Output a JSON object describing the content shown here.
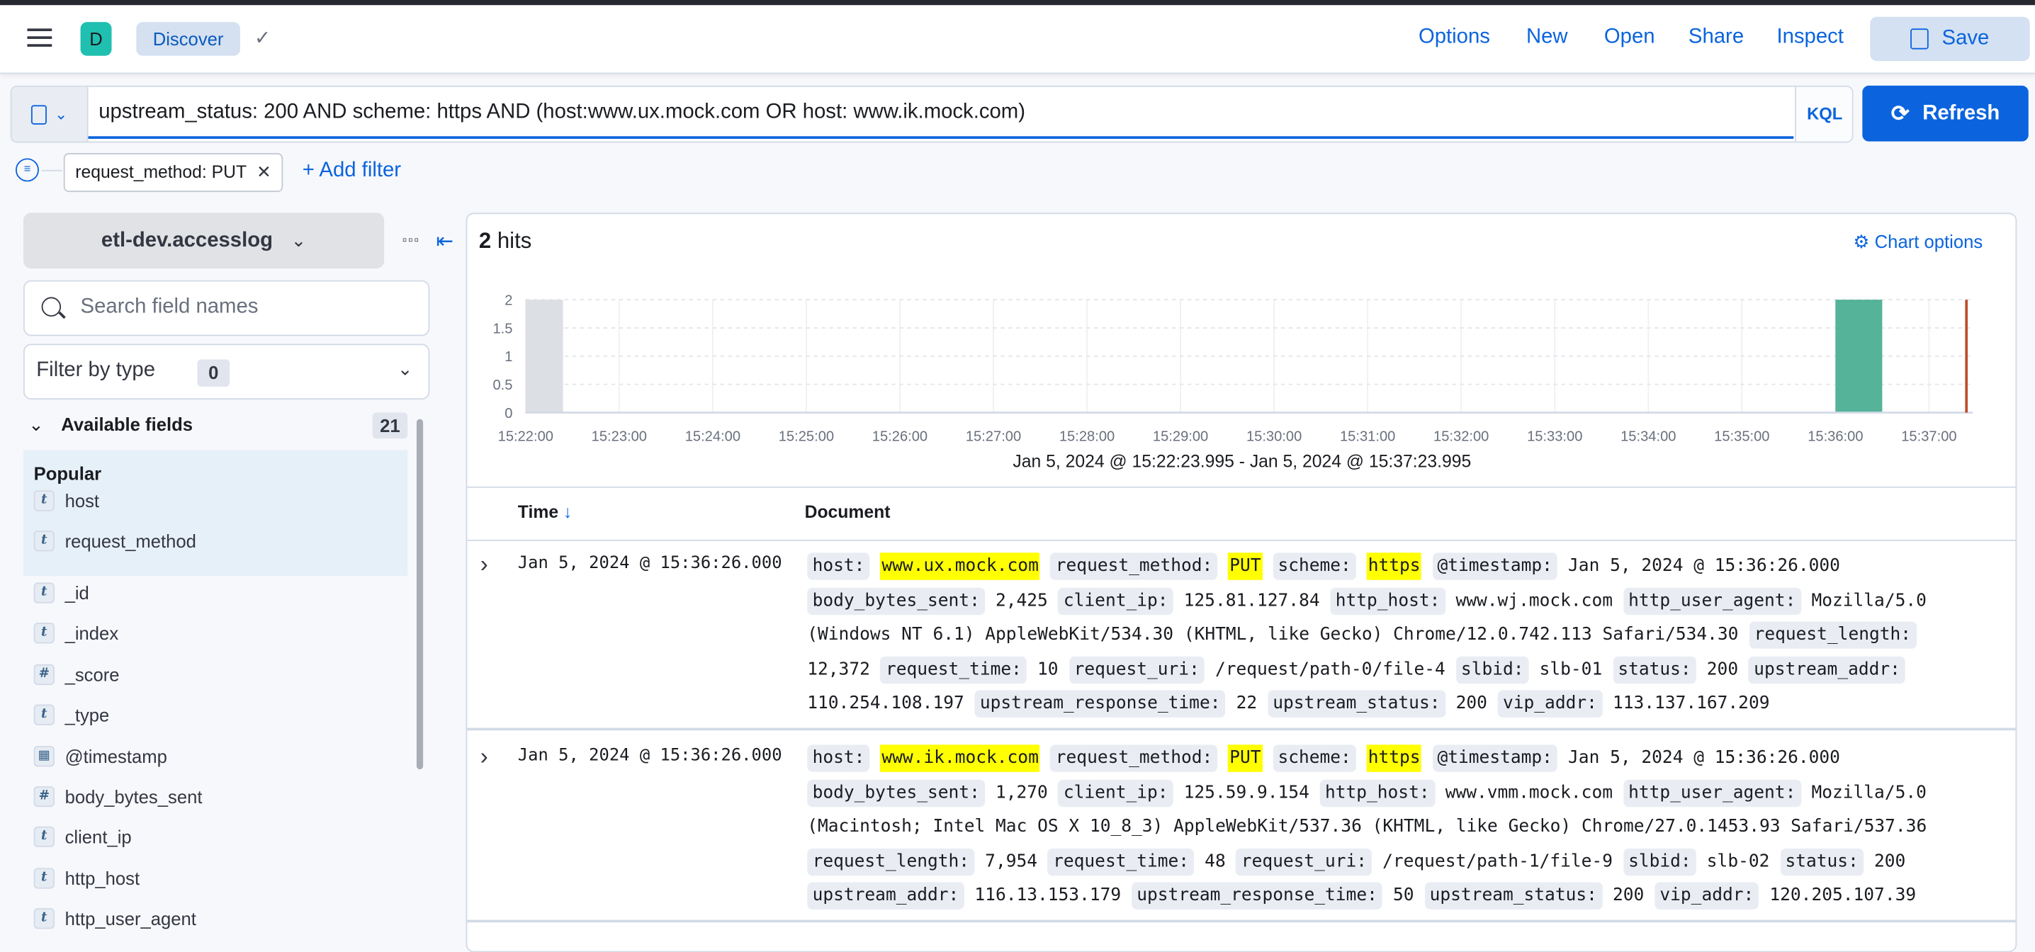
{
  "header": {
    "app_badge": "D",
    "breadcrumb": "Discover",
    "nav": [
      "Options",
      "New",
      "Open",
      "Share",
      "Inspect"
    ],
    "save_label": "Save"
  },
  "query": {
    "value": "upstream_status: 200 AND scheme: https AND (host:www.ux.mock.com OR host: www.ik.mock.com)",
    "language": "KQL",
    "refresh_label": "Refresh"
  },
  "filters": {
    "pills": [
      "request_method: PUT"
    ],
    "add_label": "+ Add filter"
  },
  "sidebar": {
    "index_pattern": "etl-dev.accesslog",
    "search_placeholder": "Search field names",
    "filter_by_type_label": "Filter by type",
    "filter_by_type_count": "0",
    "available_label": "Available fields",
    "available_count": "21",
    "popular_label": "Popular",
    "popular_fields": [
      {
        "type": "t",
        "name": "host"
      },
      {
        "type": "t",
        "name": "request_method"
      }
    ],
    "fields": [
      {
        "type": "t",
        "name": "_id"
      },
      {
        "type": "t",
        "name": "_index"
      },
      {
        "type": "#",
        "name": "_score"
      },
      {
        "type": "t",
        "name": "_type"
      },
      {
        "type": "date",
        "name": "@timestamp"
      },
      {
        "type": "#",
        "name": "body_bytes_sent"
      },
      {
        "type": "t",
        "name": "client_ip"
      },
      {
        "type": "t",
        "name": "http_host"
      },
      {
        "type": "t",
        "name": "http_user_agent"
      }
    ]
  },
  "main": {
    "hits_count": "2",
    "hits_label": " hits",
    "chart_options_label": "Chart options",
    "time_range": "Jan 5, 2024 @ 15:22:23.995 - Jan 5, 2024 @ 15:37:23.995",
    "columns": [
      "Time",
      "Document"
    ],
    "rows": [
      {
        "time": "Jan 5, 2024 @ 15:36:26.000",
        "fields": [
          {
            "k": "host:",
            "v": "www.ux.mock.com",
            "hl": true
          },
          {
            "k": "request_method:",
            "v": "PUT",
            "hl": true
          },
          {
            "k": "scheme:",
            "v": "https",
            "hl": true
          },
          {
            "k": "@timestamp:",
            "v": "Jan 5, 2024 @ 15:36:26.000"
          },
          {
            "k": "body_bytes_sent:",
            "v": "2,425"
          },
          {
            "k": "client_ip:",
            "v": "125.81.127.84"
          },
          {
            "k": "http_host:",
            "v": "www.wj.mock.com"
          },
          {
            "k": "http_user_agent:",
            "v": "Mozilla/5.0 (Windows NT 6.1) AppleWebKit/534.30 (KHTML, like Gecko) Chrome/12.0.742.113 Safari/534.30"
          },
          {
            "k": "request_length:",
            "v": "12,372"
          },
          {
            "k": "request_time:",
            "v": "10"
          },
          {
            "k": "request_uri:",
            "v": "/request/path-0/file-4"
          },
          {
            "k": "slbid:",
            "v": "slb-01"
          },
          {
            "k": "status:",
            "v": "200"
          },
          {
            "k": "upstream_addr:",
            "v": "110.254.108.197"
          },
          {
            "k": "upstream_response_time:",
            "v": "22"
          },
          {
            "k": "upstream_status:",
            "v": "200"
          },
          {
            "k": "vip_addr:",
            "v": "113.137.167.209"
          }
        ]
      },
      {
        "time": "Jan 5, 2024 @ 15:36:26.000",
        "fields": [
          {
            "k": "host:",
            "v": "www.ik.mock.com",
            "hl": true
          },
          {
            "k": "request_method:",
            "v": "PUT",
            "hl": true
          },
          {
            "k": "scheme:",
            "v": "https",
            "hl": true
          },
          {
            "k": "@timestamp:",
            "v": "Jan 5, 2024 @ 15:36:26.000"
          },
          {
            "k": "body_bytes_sent:",
            "v": "1,270"
          },
          {
            "k": "client_ip:",
            "v": "125.59.9.154"
          },
          {
            "k": "http_host:",
            "v": "www.vmm.mock.com"
          },
          {
            "k": "http_user_agent:",
            "v": "Mozilla/5.0 (Macintosh; Intel Mac OS X 10_8_3) AppleWebKit/537.36 (KHTML, like Gecko) Chrome/27.0.1453.93 Safari/537.36"
          },
          {
            "k": "request_length:",
            "v": "7,954"
          },
          {
            "k": "request_time:",
            "v": "48"
          },
          {
            "k": "request_uri:",
            "v": "/request/path-1/file-9"
          },
          {
            "k": "slbid:",
            "v": "slb-02"
          },
          {
            "k": "status:",
            "v": "200"
          },
          {
            "k": "upstream_addr:",
            "v": "116.13.153.179"
          },
          {
            "k": "upstream_response_time:",
            "v": "50"
          },
          {
            "k": "upstream_status:",
            "v": "200"
          },
          {
            "k": "vip_addr:",
            "v": "120.205.107.39"
          }
        ]
      }
    ]
  },
  "colors": {
    "accent": "#0b64dd",
    "bar": "#54b399",
    "now_marker": "#bd4c2a",
    "highlight": "#ffff00"
  },
  "chart_data": {
    "type": "bar",
    "x_ticks": [
      "15:22:00",
      "15:23:00",
      "15:24:00",
      "15:25:00",
      "15:26:00",
      "15:27:00",
      "15:28:00",
      "15:29:00",
      "15:30:00",
      "15:31:00",
      "15:32:00",
      "15:33:00",
      "15:34:00",
      "15:35:00",
      "15:36:00",
      "15:37:00"
    ],
    "y_ticks": [
      "0",
      "0.5",
      "1",
      "1.5",
      "2"
    ],
    "ylim": [
      0,
      2
    ],
    "xlim": [
      "15:22:00",
      "15:37:28"
    ],
    "interval_seconds": 30,
    "bars": [
      {
        "x": "15:36:00",
        "value": 2
      }
    ],
    "out_of_range_shading": [
      "15:22:00",
      "15:22:23.995"
    ],
    "now_marker": "15:37:23.995",
    "grid": true,
    "xlabel": "Jan 5, 2024 @ 15:22:23.995 - Jan 5, 2024 @ 15:37:23.995"
  }
}
